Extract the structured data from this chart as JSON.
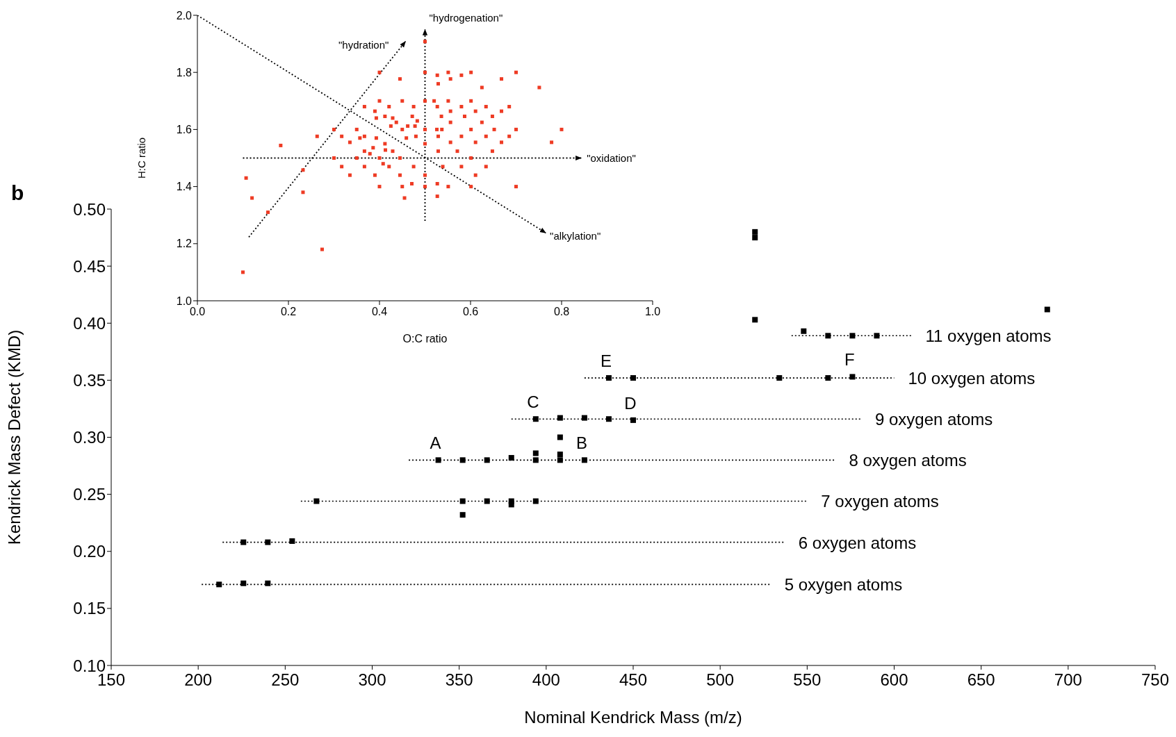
{
  "chart_data": [
    {
      "type": "scatter",
      "xlabel": "Nominal Kendrick Mass (m/z)",
      "ylabel": "Kendrick Mass Defect (KMD)",
      "marker": "square",
      "xlim": [
        150,
        750
      ],
      "xticks": [
        150,
        200,
        250,
        300,
        350,
        400,
        450,
        500,
        550,
        600,
        650,
        700,
        750
      ],
      "ylim": [
        0.1,
        0.5
      ],
      "yticks": [
        {
          "value": 0.1,
          "label": "0.10"
        },
        0.15,
        {
          "value": 0.2,
          "label": "0.20"
        },
        0.25,
        {
          "value": 0.3,
          "label": "0.30"
        },
        0.35,
        {
          "value": 0.4,
          "label": "0.40"
        },
        0.45,
        {
          "value": 0.5,
          "label": "0.50"
        }
      ],
      "series": [
        {
          "type": "line",
          "marker": "none",
          "line_style": "dotted",
          "color": "#000000",
          "x": [
            202,
            529
          ],
          "values": [
            0.171,
            0.171
          ]
        },
        {
          "type": "line",
          "marker": "none",
          "line_style": "dotted",
          "color": "#000000",
          "x": [
            214,
            537
          ],
          "values": [
            0.208,
            0.208
          ]
        },
        {
          "type": "line",
          "marker": "none",
          "line_style": "dotted",
          "color": "#000000",
          "x": [
            259,
            550
          ],
          "values": [
            0.244,
            0.244
          ]
        },
        {
          "type": "line",
          "marker": "none",
          "line_style": "dotted",
          "color": "#000000",
          "x": [
            321,
            566
          ],
          "values": [
            0.28,
            0.28
          ]
        },
        {
          "type": "line",
          "marker": "none",
          "line_style": "dotted",
          "color": "#000000",
          "x": [
            380,
            581
          ],
          "values": [
            0.316,
            0.316
          ]
        },
        {
          "type": "line",
          "marker": "none",
          "line_style": "dotted",
          "color": "#000000",
          "x": [
            422,
            600
          ],
          "values": [
            0.352,
            0.352
          ]
        },
        {
          "type": "line",
          "marker": "none",
          "line_style": "dotted",
          "color": "#000000",
          "x": [
            541,
            610
          ],
          "values": [
            0.389,
            0.389
          ]
        },
        {
          "type": "scatter",
          "color": "#000000",
          "x": [
            212,
            226,
            240,
            226,
            240,
            254,
            268,
            352,
            352,
            366,
            380,
            380,
            394,
            338,
            352,
            366,
            380,
            394,
            394,
            408,
            408,
            408,
            422,
            394,
            408,
            422,
            436,
            450,
            436,
            450,
            534,
            562,
            576,
            548,
            562,
            576,
            590,
            520,
            520,
            520,
            688
          ],
          "values": [
            0.171,
            0.172,
            0.172,
            0.208,
            0.208,
            0.209,
            0.244,
            0.244,
            0.232,
            0.244,
            0.244,
            0.241,
            0.244,
            0.28,
            0.28,
            0.28,
            0.282,
            0.28,
            0.286,
            0.28,
            0.285,
            0.3,
            0.28,
            0.316,
            0.317,
            0.317,
            0.316,
            0.315,
            0.352,
            0.352,
            0.352,
            0.352,
            0.353,
            0.393,
            0.389,
            0.389,
            0.389,
            0.403,
            0.475,
            0.48,
            0.412
          ]
        }
      ],
      "annotations": [
        "b",
        {
          "text": "5 oxygen atoms",
          "x": 529,
          "y": 0.171
        },
        {
          "text": "6 oxygen atoms",
          "x": 537,
          "y": 0.208
        },
        {
          "text": "7 oxygen atoms",
          "x": 550,
          "y": 0.244
        },
        {
          "text": "8 oxygen atoms",
          "x": 566,
          "y": 0.28
        },
        {
          "text": "9 oxygen atoms",
          "x": 581,
          "y": 0.316
        },
        {
          "text": "10 oxygen atoms",
          "x": 600,
          "y": 0.352
        },
        {
          "text": "11 oxygen atoms",
          "x": 610,
          "y": 0.389
        },
        {
          "text": "A",
          "x": 338,
          "y": 0.28
        },
        {
          "text": "B",
          "x": 422,
          "y": 0.28
        },
        {
          "text": "C",
          "x": 394,
          "y": 0.316
        },
        {
          "text": "D",
          "x": 450,
          "y": 0.315
        },
        {
          "text": "E",
          "x": 436,
          "y": 0.352
        },
        {
          "text": "F",
          "x": 576,
          "y": 0.353
        }
      ]
    },
    {
      "type": "scatter",
      "xlabel": "O:C ratio",
      "ylabel": "H:C ratio",
      "marker": "square",
      "xlim": [
        0,
        1
      ],
      "xticks": [
        {
          "value": 0,
          "label": "0.0"
        },
        0.2,
        0.4,
        0.6,
        0.8,
        {
          "value": 1,
          "label": "1.0"
        }
      ],
      "ylim": [
        1,
        2
      ],
      "yticks": [
        {
          "value": 1,
          "label": "1.0"
        },
        1.2,
        1.4,
        1.6,
        1.8,
        {
          "value": 2,
          "label": "2.0"
        }
      ],
      "series": [
        {
          "type": "scatter",
          "color": "#ee3b24",
          "x": [
            0.1,
            0.107,
            0.12,
            0.155,
            0.183,
            0.232,
            0.232,
            0.263,
            0.274,
            0.3,
            0.3,
            0.317,
            0.317,
            0.335,
            0.335,
            0.35,
            0.35,
            0.357,
            0.367,
            0.367,
            0.367,
            0.367,
            0.379,
            0.386,
            0.39,
            0.393,
            0.393,
            0.39,
            0.4,
            0.4,
            0.4,
            0.4,
            0.408,
            0.412,
            0.412,
            0.413,
            0.421,
            0.421,
            0.425,
            0.429,
            0.429,
            0.437,
            0.445,
            0.445,
            0.445,
            0.45,
            0.45,
            0.45,
            0.455,
            0.459,
            0.462,
            0.472,
            0.475,
            0.471,
            0.475,
            0.478,
            0.48,
            0.483,
            0.5,
            0.5,
            0.5,
            0.5,
            0.5,
            0.5,
            0.5,
            0.52,
            0.527,
            0.529,
            0.527,
            0.526,
            0.529,
            0.529,
            0.527,
            0.527,
            0.536,
            0.537,
            0.539,
            0.551,
            0.551,
            0.551,
            0.556,
            0.556,
            0.556,
            0.556,
            0.571,
            0.58,
            0.58,
            0.58,
            0.58,
            0.587,
            0.601,
            0.601,
            0.601,
            0.601,
            0.601,
            0.611,
            0.611,
            0.611,
            0.625,
            0.625,
            0.634,
            0.634,
            0.634,
            0.648,
            0.648,
            0.652,
            0.668,
            0.668,
            0.668,
            0.685,
            0.685,
            0.7,
            0.7,
            0.7,
            0.751,
            0.778,
            0.8
          ],
          "values": [
            1.1,
            1.43,
            1.36,
            1.31,
            1.544,
            1.458,
            1.38,
            1.576,
            1.18,
            1.5,
            1.6,
            1.576,
            1.47,
            1.555,
            1.44,
            1.6,
            1.5,
            1.57,
            1.68,
            1.576,
            1.524,
            1.47,
            1.515,
            1.536,
            1.664,
            1.64,
            1.57,
            1.44,
            1.8,
            1.7,
            1.5,
            1.4,
            1.48,
            1.646,
            1.55,
            1.528,
            1.68,
            1.47,
            1.612,
            1.64,
            1.524,
            1.625,
            1.777,
            1.5,
            1.44,
            1.7,
            1.6,
            1.4,
            1.36,
            1.57,
            1.612,
            1.646,
            1.68,
            1.41,
            1.47,
            1.612,
            1.576,
            1.63,
            1.8,
            1.7,
            1.908,
            1.6,
            1.55,
            1.44,
            1.4,
            1.7,
            1.79,
            1.76,
            1.68,
            1.6,
            1.576,
            1.524,
            1.41,
            1.366,
            1.646,
            1.6,
            1.47,
            1.8,
            1.7,
            1.4,
            1.777,
            1.664,
            1.625,
            1.555,
            1.524,
            1.79,
            1.68,
            1.576,
            1.47,
            1.646,
            1.8,
            1.7,
            1.6,
            1.5,
            1.4,
            1.664,
            1.555,
            1.44,
            1.747,
            1.625,
            1.68,
            1.576,
            1.47,
            1.646,
            1.524,
            1.6,
            1.777,
            1.664,
            1.555,
            1.68,
            1.576,
            1.8,
            1.6,
            1.4,
            1.747,
            1.555,
            1.6
          ]
        },
        {
          "type": "line",
          "name": "\"hydration\"",
          "marker": "none",
          "line_style": "dotted",
          "color": "#000000",
          "x": [
            0.113,
            0.457
          ],
          "values": [
            1.223,
            1.908
          ]
        },
        {
          "type": "line",
          "name": "\"hydrogenation\"",
          "marker": "none",
          "line_style": "dotted",
          "color": "#000000",
          "x": [
            0.5,
            0.5
          ],
          "values": [
            1.28,
            1.95
          ]
        },
        {
          "type": "line",
          "name": "\"oxidation\"",
          "marker": "none",
          "line_style": "dotted",
          "color": "#000000",
          "x": [
            0.1,
            0.843
          ],
          "values": [
            1.5,
            1.5
          ]
        },
        {
          "type": "line",
          "name": "\"alkylation\"",
          "marker": "none",
          "line_style": "dotted",
          "color": "#000000",
          "x": [
            0,
            0.765
          ],
          "values": [
            2,
            1.238
          ]
        }
      ]
    }
  ]
}
